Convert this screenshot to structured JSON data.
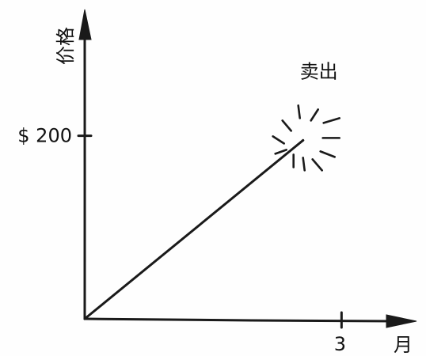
{
  "chart_data": {
    "type": "line",
    "title": "",
    "xlabel": "月",
    "ylabel": "价格",
    "x_ticks": [
      {
        "value": 3,
        "label": "3"
      }
    ],
    "y_ticks": [
      {
        "value": 200,
        "label": "$ 200"
      }
    ],
    "xlim": [
      0,
      3.45
    ],
    "ylim": [
      0,
      331
    ],
    "series": [
      {
        "values": [
          {
            "x": 0,
            "y": 0
          },
          {
            "x": 2.55,
            "y": 195
          }
        ]
      }
    ],
    "annotations": [
      {
        "text": "卖出",
        "x": 2.55,
        "y": 195,
        "marker": "burst"
      }
    ],
    "grid": false,
    "legend": "none"
  }
}
